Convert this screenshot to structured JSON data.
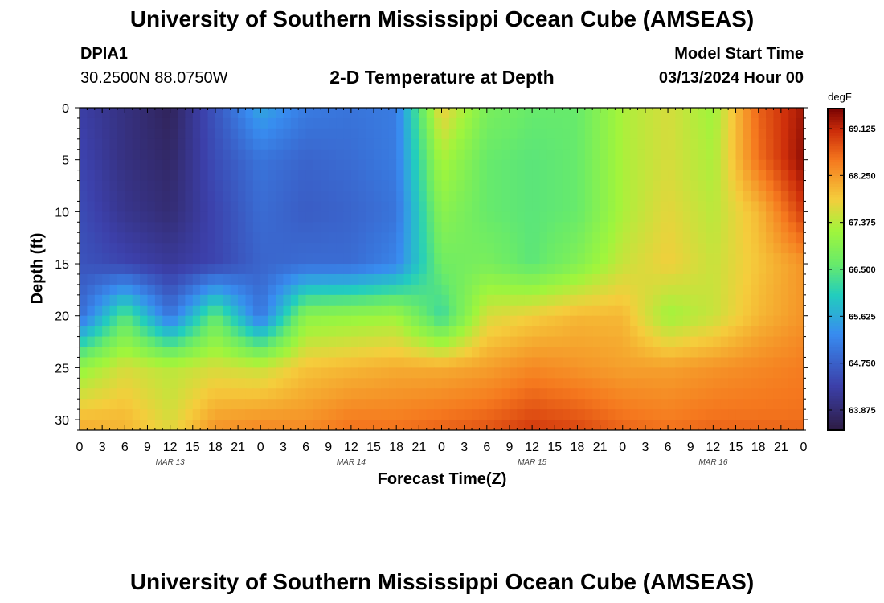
{
  "header": {
    "title": "University of Southern Mississippi Ocean Cube (AMSEAS)",
    "station": "DPIA1",
    "coords": "30.2500N  88.0750W",
    "subtitle": "2-D Temperature at Depth",
    "model_start_label": "Model Start Time",
    "model_start_value": "03/13/2024 Hour 00"
  },
  "footer": {
    "title": "University of Southern Mississippi Ocean Cube (AMSEAS)"
  },
  "chart_data": {
    "type": "heatmap",
    "title": "2-D Temperature at Depth",
    "xlabel": "Forecast Time(Z)",
    "ylabel": "Depth (ft)",
    "x_unit": "hours since 03/13/2024 00Z",
    "xlim": [
      0,
      96
    ],
    "ylim": [
      31,
      0
    ],
    "x_ticks": [
      0,
      3,
      6,
      9,
      12,
      15,
      18,
      21,
      24,
      27,
      30,
      33,
      36,
      39,
      42,
      45,
      48,
      51,
      54,
      57,
      60,
      63,
      66,
      69,
      72,
      75,
      78,
      81,
      84,
      87,
      90,
      93,
      96
    ],
    "x_tick_labels": [
      "0",
      "3",
      "6",
      "9",
      "12",
      "15",
      "18",
      "21",
      "0",
      "3",
      "6",
      "9",
      "12",
      "15",
      "18",
      "21",
      "0",
      "3",
      "6",
      "9",
      "12",
      "15",
      "18",
      "21",
      "0",
      "3",
      "6",
      "9",
      "12",
      "15",
      "18",
      "21",
      "0"
    ],
    "date_labels": [
      {
        "label": "MAR 13",
        "x": 12
      },
      {
        "label": "MAR 14",
        "x": 36
      },
      {
        "label": "MAR 15",
        "x": 60
      },
      {
        "label": "MAR 16",
        "x": 84
      }
    ],
    "y_ticks": [
      0,
      5,
      10,
      15,
      20,
      25,
      30
    ],
    "y_tick_labels": [
      "0",
      "5",
      "10",
      "15",
      "20",
      "25",
      "30"
    ],
    "colorbar": {
      "unit": "degF",
      "min": 63.5,
      "max": 69.5,
      "ticks": [
        69.125,
        68.25,
        67.375,
        66.5,
        65.625,
        64.75,
        63.875
      ],
      "tick_labels": [
        "69.125",
        "68.250",
        "67.375",
        "66.500",
        "65.625",
        "64.750",
        "63.875"
      ]
    },
    "grid": {
      "times": [
        0,
        6,
        12,
        18,
        24,
        30,
        36,
        42,
        48,
        54,
        60,
        66,
        72,
        78,
        84,
        90,
        96
      ],
      "depths": [
        0,
        5,
        10,
        15,
        20,
        25,
        30,
        31
      ],
      "values": [
        [
          64.3,
          64.0,
          63.7,
          64.6,
          65.6,
          65.1,
          65.0,
          65.1,
          67.8,
          66.8,
          66.6,
          66.6,
          67.3,
          67.6,
          67.2,
          68.7,
          69.3
        ],
        [
          64.4,
          64.0,
          63.8,
          64.5,
          65.0,
          64.8,
          64.9,
          65.1,
          67.3,
          66.6,
          66.5,
          66.6,
          67.3,
          67.6,
          67.3,
          68.6,
          69.4
        ],
        [
          64.5,
          64.1,
          63.9,
          64.4,
          64.9,
          64.7,
          64.8,
          65.0,
          67.0,
          66.6,
          66.5,
          66.6,
          67.3,
          67.7,
          67.4,
          68.0,
          69.0
        ],
        [
          64.6,
          64.4,
          64.2,
          64.4,
          64.8,
          64.9,
          64.9,
          65.2,
          66.7,
          66.8,
          66.5,
          66.9,
          67.5,
          67.8,
          67.5,
          67.9,
          68.3
        ],
        [
          64.9,
          66.5,
          65.0,
          66.6,
          65.0,
          67.0,
          67.1,
          67.2,
          66.2,
          67.6,
          67.8,
          68.0,
          68.0,
          67.2,
          67.5,
          68.0,
          68.3
        ],
        [
          67.1,
          67.6,
          67.4,
          67.6,
          67.5,
          67.9,
          68.0,
          68.1,
          68.1,
          68.2,
          68.4,
          68.3,
          68.2,
          68.2,
          68.3,
          68.4,
          68.5
        ],
        [
          68.0,
          68.0,
          67.6,
          68.2,
          68.3,
          68.3,
          68.5,
          68.5,
          68.6,
          68.7,
          68.9,
          68.8,
          68.6,
          68.5,
          68.6,
          68.6,
          68.6
        ],
        [
          68.1,
          68.0,
          67.7,
          68.3,
          68.4,
          68.4,
          68.6,
          68.6,
          68.7,
          68.8,
          69.0,
          68.9,
          68.7,
          68.6,
          68.7,
          68.7,
          68.7
        ]
      ]
    }
  }
}
